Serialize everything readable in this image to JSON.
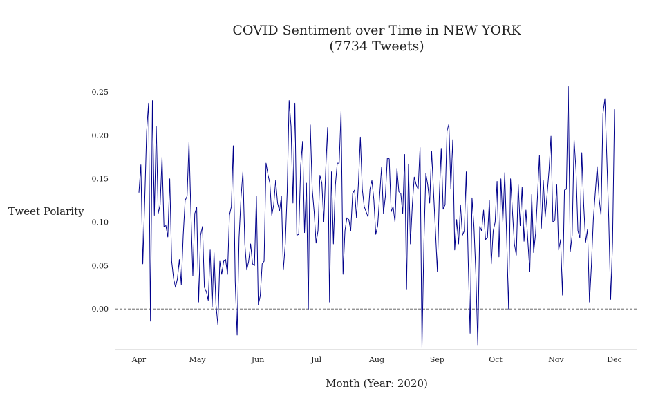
{
  "chart_data": {
    "type": "line",
    "title": "COVID Sentiment over Time in NEW YORK",
    "subtitle": "(7734 Tweets)",
    "xlabel": "Month (Year: 2020)",
    "ylabel": "Tweet Polarity",
    "x_start": "2020-04-01",
    "x_end": "2020-12-01",
    "xticks": [
      {
        "label": "Apr",
        "date": "2020-04-01"
      },
      {
        "label": "May",
        "date": "2020-05-01"
      },
      {
        "label": "Jun",
        "date": "2020-06-01"
      },
      {
        "label": "Jul",
        "date": "2020-07-01"
      },
      {
        "label": "Aug",
        "date": "2020-08-01"
      },
      {
        "label": "Sep",
        "date": "2020-09-01"
      },
      {
        "label": "Oct",
        "date": "2020-10-01"
      },
      {
        "label": "Nov",
        "date": "2020-11-01"
      },
      {
        "label": "Dec",
        "date": "2020-12-01"
      }
    ],
    "yticks": [
      "0.25",
      "0.20",
      "0.15",
      "0.10",
      "0.05",
      "0.00"
    ],
    "ylim": [
      -0.046,
      0.258
    ],
    "reference_line": {
      "y": 0.0,
      "style": "dashed"
    },
    "grid": false,
    "color": "#00008b",
    "series": [
      {
        "values": [
          0.134,
          0.166,
          0.052,
          0.125,
          0.205,
          0.237,
          -0.014,
          0.24,
          0.108,
          0.21,
          0.11,
          0.12,
          0.175,
          0.095,
          0.096,
          0.083,
          0.15,
          0.055,
          0.035,
          0.025,
          0.035,
          0.057,
          0.028,
          0.085,
          0.125,
          0.13,
          0.192,
          0.11,
          0.038,
          0.11,
          0.117,
          0.008,
          0.085,
          0.095,
          0.025,
          0.02,
          0.01,
          0.068,
          0.002,
          0.065,
          0.005,
          -0.018,
          0.055,
          0.04,
          0.055,
          0.057,
          0.04,
          0.108,
          0.118,
          0.188,
          0.032,
          -0.03,
          0.082,
          0.128,
          0.158,
          0.075,
          0.045,
          0.055,
          0.075,
          0.052,
          0.05,
          0.13,
          0.005,
          0.015,
          0.052,
          0.055,
          0.168,
          0.155,
          0.145,
          0.108,
          0.12,
          0.148,
          0.122,
          0.113,
          0.13,
          0.045,
          0.075,
          0.135,
          0.24,
          0.21,
          0.122,
          0.237,
          0.085,
          0.086,
          0.165,
          0.193,
          0.088,
          0.145,
          0.0,
          0.212,
          0.138,
          0.112,
          0.076,
          0.09,
          0.154,
          0.145,
          0.1,
          0.16,
          0.209,
          0.008,
          0.158,
          0.075,
          0.142,
          0.168,
          0.168,
          0.228,
          0.04,
          0.09,
          0.105,
          0.103,
          0.09,
          0.133,
          0.137,
          0.105,
          0.145,
          0.198,
          0.138,
          0.118,
          0.112,
          0.106,
          0.138,
          0.148,
          0.126,
          0.086,
          0.096,
          0.13,
          0.163,
          0.11,
          0.13,
          0.174,
          0.173,
          0.112,
          0.118,
          0.1,
          0.162,
          0.135,
          0.133,
          0.11,
          0.178,
          0.023,
          0.167,
          0.075,
          0.12,
          0.152,
          0.143,
          0.138,
          0.186,
          -0.044,
          0.075,
          0.156,
          0.143,
          0.122,
          0.182,
          0.135,
          0.09,
          0.043,
          0.13,
          0.185,
          0.115,
          0.12,
          0.205,
          0.213,
          0.138,
          0.195,
          0.068,
          0.103,
          0.075,
          0.12,
          0.085,
          0.09,
          0.158,
          0.057,
          -0.028,
          0.128,
          0.095,
          0.04,
          -0.042,
          0.095,
          0.09,
          0.114,
          0.08,
          0.082,
          0.125,
          0.052,
          0.09,
          0.1,
          0.147,
          0.06,
          0.15,
          0.1,
          0.157,
          0.082,
          0.0,
          0.15,
          0.112,
          0.075,
          0.062,
          0.143,
          0.096,
          0.14,
          0.078,
          0.114,
          0.078,
          0.043,
          0.132,
          0.065,
          0.087,
          0.13,
          0.177,
          0.093,
          0.148,
          0.106,
          0.132,
          0.16,
          0.199,
          0.1,
          0.102,
          0.143,
          0.068,
          0.08,
          0.016,
          0.137,
          0.138,
          0.256,
          0.066,
          0.085,
          0.195,
          0.16,
          0.09,
          0.082,
          0.18,
          0.12,
          0.077,
          0.092,
          0.008,
          0.05,
          0.103,
          0.134,
          0.164,
          0.127,
          0.108,
          0.225,
          0.242,
          0.174,
          0.105,
          0.011,
          0.077,
          0.23
        ]
      }
    ]
  }
}
